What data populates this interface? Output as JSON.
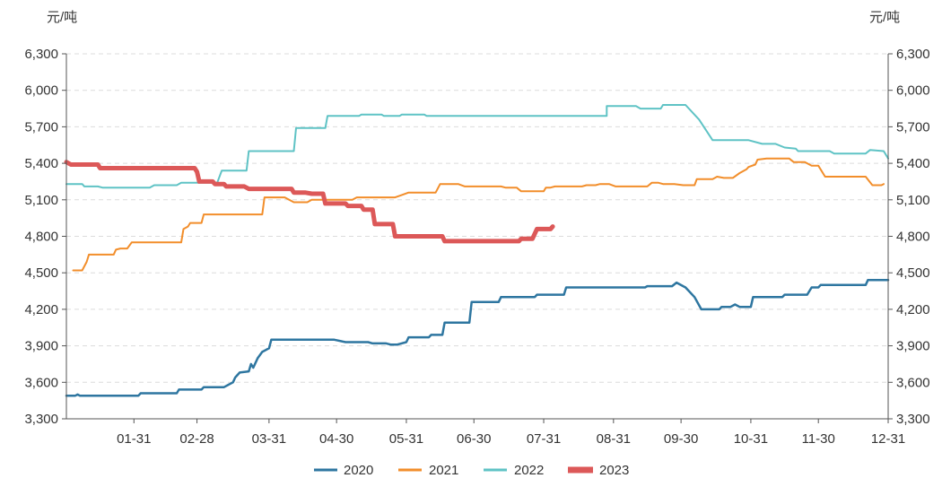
{
  "chart_data": {
    "type": "line",
    "y_unit_left": "元/吨",
    "y_unit_right": "元/吨",
    "ylim": [
      3300,
      6300
    ],
    "y_ticks": [
      "3,300",
      "3,600",
      "3,900",
      "4,200",
      "4,500",
      "4,800",
      "5,100",
      "5,400",
      "5,700",
      "6,000",
      "6,300"
    ],
    "y_tick_values": [
      3300,
      3600,
      3900,
      4200,
      4500,
      4800,
      5100,
      5400,
      5700,
      6000,
      6300
    ],
    "x_range_days": [
      1,
      366
    ],
    "x_tick_labels": [
      "01-31",
      "02-28",
      "03-31",
      "04-30",
      "05-31",
      "06-30",
      "07-31",
      "08-31",
      "09-30",
      "10-31",
      "11-30",
      "12-31"
    ],
    "x_tick_days": [
      31,
      59,
      91,
      121,
      152,
      182,
      213,
      244,
      274,
      305,
      335,
      366
    ],
    "grid": "horizontal dashed",
    "legend_position": "bottom",
    "series": [
      {
        "name": "2020",
        "color": "#2e76a0",
        "line_width": 2.5,
        "points": [
          [
            1,
            3490
          ],
          [
            5,
            3490
          ],
          [
            6,
            3500
          ],
          [
            7,
            3490
          ],
          [
            33,
            3490
          ],
          [
            34,
            3510
          ],
          [
            50,
            3510
          ],
          [
            51,
            3540
          ],
          [
            61,
            3540
          ],
          [
            62,
            3560
          ],
          [
            71,
            3560
          ],
          [
            75,
            3600
          ],
          [
            76,
            3640
          ],
          [
            78,
            3680
          ],
          [
            82,
            3690
          ],
          [
            83,
            3750
          ],
          [
            84,
            3720
          ],
          [
            86,
            3800
          ],
          [
            88,
            3850
          ],
          [
            91,
            3880
          ],
          [
            92,
            3950
          ],
          [
            120,
            3950
          ],
          [
            125,
            3930
          ],
          [
            135,
            3930
          ],
          [
            137,
            3920
          ],
          [
            143,
            3920
          ],
          [
            145,
            3910
          ],
          [
            148,
            3910
          ],
          [
            152,
            3930
          ],
          [
            153,
            3970
          ],
          [
            162,
            3970
          ],
          [
            163,
            3990
          ],
          [
            168,
            3990
          ],
          [
            169,
            4090
          ],
          [
            180,
            4090
          ],
          [
            181,
            4260
          ],
          [
            193,
            4260
          ],
          [
            194,
            4300
          ],
          [
            209,
            4300
          ],
          [
            210,
            4320
          ],
          [
            222,
            4320
          ],
          [
            223,
            4380
          ],
          [
            258,
            4380
          ],
          [
            259,
            4390
          ],
          [
            270,
            4390
          ],
          [
            272,
            4420
          ],
          [
            276,
            4380
          ],
          [
            280,
            4300
          ],
          [
            283,
            4200
          ],
          [
            291,
            4200
          ],
          [
            292,
            4220
          ],
          [
            296,
            4220
          ],
          [
            298,
            4240
          ],
          [
            300,
            4220
          ],
          [
            305,
            4220
          ],
          [
            306,
            4300
          ],
          [
            319,
            4300
          ],
          [
            320,
            4320
          ],
          [
            330,
            4320
          ],
          [
            332,
            4380
          ],
          [
            335,
            4380
          ],
          [
            336,
            4400
          ],
          [
            356,
            4400
          ],
          [
            357,
            4440
          ],
          [
            366,
            4440
          ]
        ]
      },
      {
        "name": "2021",
        "color": "#f28e2b",
        "line_width": 2,
        "points": [
          [
            4,
            4520
          ],
          [
            8,
            4520
          ],
          [
            10,
            4590
          ],
          [
            11,
            4650
          ],
          [
            22,
            4650
          ],
          [
            23,
            4690
          ],
          [
            25,
            4700
          ],
          [
            28,
            4700
          ],
          [
            30,
            4750
          ],
          [
            52,
            4750
          ],
          [
            53,
            4860
          ],
          [
            55,
            4880
          ],
          [
            56,
            4910
          ],
          [
            61,
            4910
          ],
          [
            62,
            4980
          ],
          [
            88,
            4980
          ],
          [
            89,
            5120
          ],
          [
            98,
            5120
          ],
          [
            102,
            5080
          ],
          [
            108,
            5080
          ],
          [
            110,
            5100
          ],
          [
            128,
            5100
          ],
          [
            130,
            5120
          ],
          [
            147,
            5120
          ],
          [
            150,
            5140
          ],
          [
            153,
            5160
          ],
          [
            165,
            5160
          ],
          [
            167,
            5230
          ],
          [
            175,
            5230
          ],
          [
            178,
            5210
          ],
          [
            194,
            5210
          ],
          [
            196,
            5200
          ],
          [
            201,
            5200
          ],
          [
            203,
            5170
          ],
          [
            213,
            5170
          ],
          [
            214,
            5200
          ],
          [
            216,
            5200
          ],
          [
            218,
            5210
          ],
          [
            230,
            5210
          ],
          [
            232,
            5220
          ],
          [
            236,
            5220
          ],
          [
            238,
            5230
          ],
          [
            242,
            5230
          ],
          [
            245,
            5210
          ],
          [
            259,
            5210
          ],
          [
            261,
            5240
          ],
          [
            264,
            5240
          ],
          [
            266,
            5230
          ],
          [
            271,
            5230
          ],
          [
            275,
            5220
          ],
          [
            280,
            5220
          ],
          [
            281,
            5270
          ],
          [
            288,
            5270
          ],
          [
            290,
            5290
          ],
          [
            293,
            5280
          ],
          [
            297,
            5280
          ],
          [
            300,
            5320
          ],
          [
            303,
            5350
          ],
          [
            304,
            5370
          ],
          [
            307,
            5390
          ],
          [
            308,
            5430
          ],
          [
            312,
            5440
          ],
          [
            322,
            5440
          ],
          [
            324,
            5410
          ],
          [
            329,
            5410
          ],
          [
            332,
            5380
          ],
          [
            335,
            5380
          ],
          [
            338,
            5290
          ],
          [
            356,
            5290
          ],
          [
            359,
            5220
          ],
          [
            363,
            5220
          ],
          [
            364,
            5230
          ]
        ]
      },
      {
        "name": "2022",
        "color": "#5fc3c5",
        "line_width": 2,
        "points": [
          [
            1,
            5230
          ],
          [
            8,
            5230
          ],
          [
            9,
            5210
          ],
          [
            15,
            5210
          ],
          [
            17,
            5200
          ],
          [
            38,
            5200
          ],
          [
            40,
            5220
          ],
          [
            50,
            5220
          ],
          [
            52,
            5240
          ],
          [
            68,
            5240
          ],
          [
            70,
            5340
          ],
          [
            81,
            5340
          ],
          [
            82,
            5500
          ],
          [
            102,
            5500
          ],
          [
            103,
            5690
          ],
          [
            116,
            5690
          ],
          [
            117,
            5790
          ],
          [
            131,
            5790
          ],
          [
            132,
            5800
          ],
          [
            141,
            5800
          ],
          [
            142,
            5790
          ],
          [
            149,
            5790
          ],
          [
            150,
            5800
          ],
          [
            160,
            5800
          ],
          [
            161,
            5790
          ],
          [
            241,
            5790
          ],
          [
            241,
            5870
          ],
          [
            254,
            5870
          ],
          [
            256,
            5850
          ],
          [
            265,
            5850
          ],
          [
            266,
            5880
          ],
          [
            276,
            5880
          ],
          [
            282,
            5760
          ],
          [
            288,
            5590
          ],
          [
            304,
            5590
          ],
          [
            310,
            5560
          ],
          [
            316,
            5560
          ],
          [
            320,
            5530
          ],
          [
            325,
            5520
          ],
          [
            326,
            5500
          ],
          [
            340,
            5500
          ],
          [
            342,
            5480
          ],
          [
            356,
            5480
          ],
          [
            358,
            5510
          ],
          [
            364,
            5500
          ],
          [
            366,
            5440
          ]
        ]
      },
      {
        "name": "2023",
        "color": "#dc5858",
        "line_width": 5,
        "points": [
          [
            1,
            5410
          ],
          [
            3,
            5390
          ],
          [
            15,
            5390
          ],
          [
            16,
            5360
          ],
          [
            58,
            5360
          ],
          [
            59,
            5330
          ],
          [
            60,
            5250
          ],
          [
            66,
            5250
          ],
          [
            67,
            5230
          ],
          [
            71,
            5230
          ],
          [
            72,
            5210
          ],
          [
            80,
            5210
          ],
          [
            82,
            5190
          ],
          [
            101,
            5190
          ],
          [
            102,
            5160
          ],
          [
            107,
            5160
          ],
          [
            110,
            5150
          ],
          [
            115,
            5150
          ],
          [
            116,
            5070
          ],
          [
            125,
            5070
          ],
          [
            126,
            5050
          ],
          [
            132,
            5050
          ],
          [
            133,
            5020
          ],
          [
            137,
            5020
          ],
          [
            138,
            4900
          ],
          [
            146,
            4900
          ],
          [
            147,
            4800
          ],
          [
            168,
            4800
          ],
          [
            169,
            4760
          ],
          [
            202,
            4760
          ],
          [
            203,
            4780
          ],
          [
            208,
            4780
          ],
          [
            210,
            4860
          ],
          [
            216,
            4860
          ],
          [
            217,
            4880
          ]
        ]
      }
    ]
  },
  "legend": {
    "items": [
      {
        "label": "2020",
        "color": "#2e76a0"
      },
      {
        "label": "2021",
        "color": "#f28e2b"
      },
      {
        "label": "2022",
        "color": "#5fc3c5"
      },
      {
        "label": "2023",
        "color": "#dc5858"
      }
    ]
  }
}
